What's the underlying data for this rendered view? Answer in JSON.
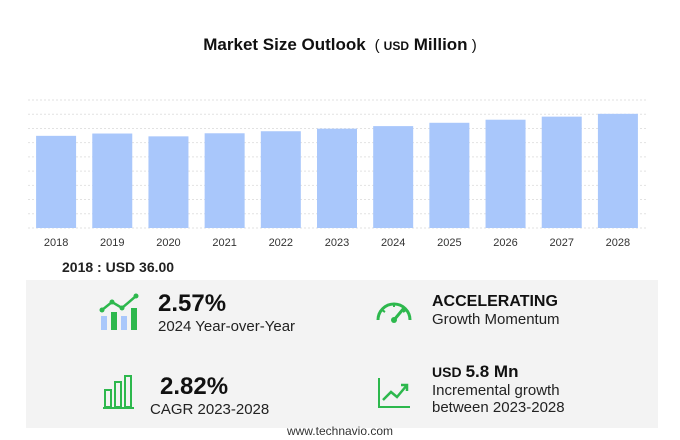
{
  "title": {
    "main": "Market Size Outlook",
    "unit": "USD",
    "unit_word": "Million"
  },
  "chart_data": {
    "type": "bar",
    "categories": [
      "2018",
      "2019",
      "2020",
      "2021",
      "2022",
      "2023",
      "2024",
      "2025",
      "2026",
      "2027",
      "2028"
    ],
    "values": [
      36.0,
      36.9,
      35.8,
      37.0,
      37.8,
      38.8,
      39.8,
      41.1,
      42.3,
      43.5,
      44.6
    ],
    "ylim": [
      0,
      50
    ],
    "grid": true,
    "bar_color": "#a9c7fb"
  },
  "base_year": {
    "label": "2018 : USD  36.00"
  },
  "metrics": {
    "yoy": {
      "value": "2.57%",
      "label": "2024 Year-over-Year",
      "icon": "growth-chart-icon"
    },
    "momentum": {
      "value": "ACCELERATING",
      "label": "Growth Momentum",
      "icon": "speedometer-icon"
    },
    "cagr": {
      "value": "2.82%",
      "label": "CAGR 2023-2028",
      "icon": "bar-chart-icon"
    },
    "incremental": {
      "currency": "USD",
      "value": "5.8 Mn",
      "label_line1": "Incremental growth",
      "label_line2": "between 2023-2028",
      "icon": "line-trend-icon"
    }
  },
  "footer": {
    "text": "www.technavio.com"
  },
  "colors": {
    "accent_green": "#2db84d",
    "bar_blue": "#a9c7fb",
    "panel_bg": "#f3f3f3"
  }
}
